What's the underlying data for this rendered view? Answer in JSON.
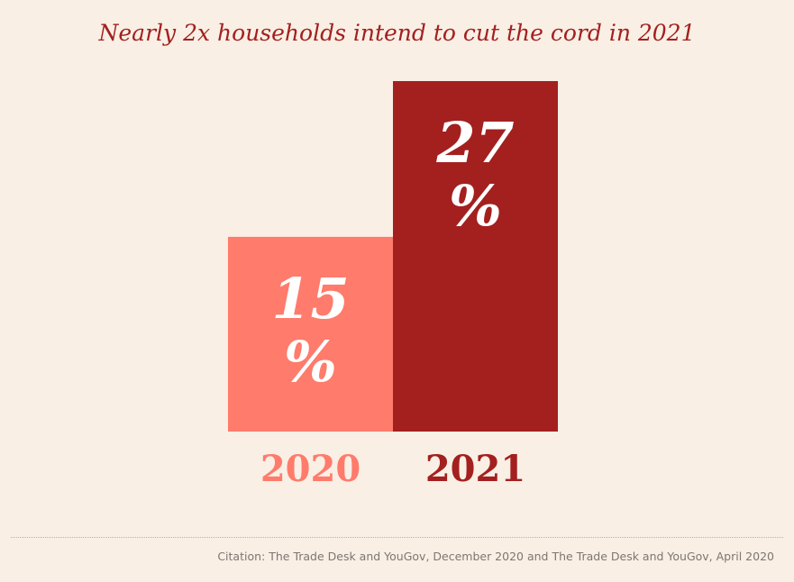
{
  "title": "Nearly 2x households intend to cut the cord in 2021",
  "citation": "Citation: The Trade Desk and YouGov, December 2020 and The Trade Desk and YouGov, April 2020",
  "colors": {
    "background": "#f9efe5",
    "bar_2020": "#ff7b6b",
    "bar_2021": "#a3201f",
    "title": "#a3201f"
  },
  "chart_data": {
    "type": "bar",
    "title": "Nearly 2x households intend to cut the cord in 2021",
    "categories": [
      "2020",
      "2021"
    ],
    "values": [
      15,
      27
    ],
    "data_labels": [
      "15",
      "27"
    ],
    "unit": "%",
    "colors": [
      "#ff7b6b",
      "#a3201f"
    ],
    "ylim": [
      0,
      27
    ],
    "grid": false,
    "legend": "none"
  }
}
